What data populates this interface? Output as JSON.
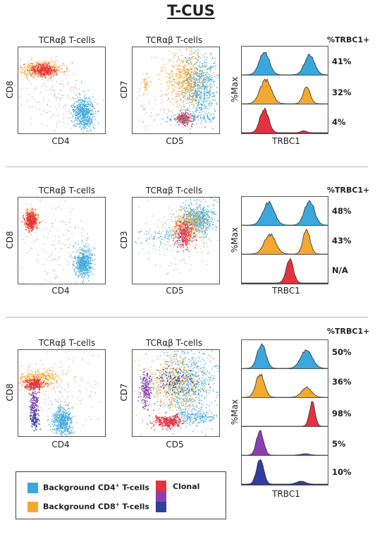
{
  "title": "T-CUS",
  "colors": {
    "cd4": "#3aa7dd",
    "cd8": "#f3a830",
    "clonal_red": "#e5323f",
    "clonal_purple": "#8a3fb0",
    "clonal_blue": "#2f3ea0",
    "grey": "#9e9e9e"
  },
  "pct_header": "%TRBC1+",
  "panels": [
    {
      "left_title": "TCRαβ T-cells",
      "left_x": "CD4",
      "left_y": "CD8",
      "mid_title": "TCRαβ T-cells",
      "mid_x": "CD5",
      "mid_y": "CD7",
      "hist_y": "%Max",
      "hist_x": "TRBC1",
      "percents": [
        "41%",
        "32%",
        "4%"
      ]
    },
    {
      "left_title": "TCRαβ T-cells",
      "left_x": "CD4",
      "left_y": "CD8",
      "mid_title": "TCRαβ T-cells",
      "mid_x": "CD5",
      "mid_y": "CD3",
      "hist_y": "%Max",
      "hist_x": "TRBC1",
      "percents": [
        "48%",
        "43%",
        "N/A"
      ]
    },
    {
      "left_title": "TCRαβ T-cells",
      "left_x": "CD4",
      "left_y": "CD8",
      "mid_title": "TCRαβ T-cells",
      "mid_x": "CD5",
      "mid_y": "CD7",
      "hist_y": "%Max",
      "hist_x": "TRBC1",
      "percents": [
        "50%",
        "36%",
        "98%",
        "5%",
        "10%"
      ]
    }
  ],
  "legend": {
    "cd4_label": "Background CD4",
    "cd8_label": "Background CD8",
    "sup": "+",
    "suffix": " T-cells",
    "clonal_label": "Clonal"
  },
  "chart_data": {
    "type": "scatter",
    "percent_trbc1_positive": {
      "panel_1": {
        "background_cd4": 41,
        "background_cd8": 32,
        "clonal": 4
      },
      "panel_2": {
        "background_cd4": 48,
        "background_cd8": 43,
        "clonal": "N/A"
      },
      "panel_3": {
        "background_cd4": 50,
        "background_cd8": 36,
        "clonal_red": 98,
        "clonal_purple": 5,
        "clonal_blue": 10
      }
    }
  }
}
